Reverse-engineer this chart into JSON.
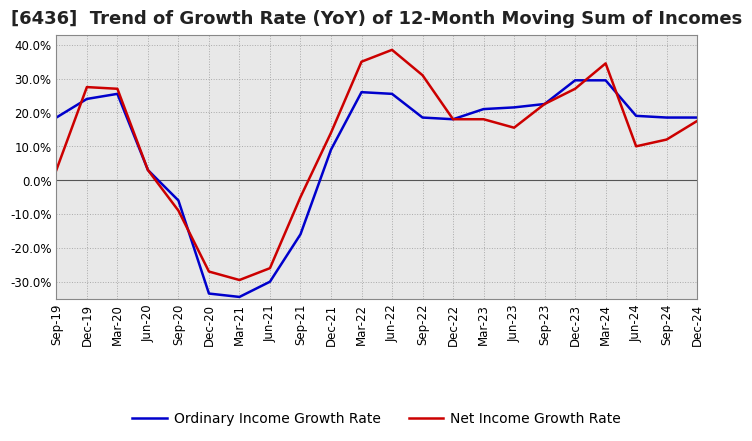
{
  "title": "[6436]  Trend of Growth Rate (YoY) of 12-Month Moving Sum of Incomes",
  "x_labels": [
    "Sep-19",
    "Dec-19",
    "Mar-20",
    "Jun-20",
    "Sep-20",
    "Dec-20",
    "Mar-21",
    "Jun-21",
    "Sep-21",
    "Dec-21",
    "Mar-22",
    "Jun-22",
    "Sep-22",
    "Dec-22",
    "Mar-23",
    "Jun-23",
    "Sep-23",
    "Dec-23",
    "Mar-24",
    "Jun-24",
    "Sep-24",
    "Dec-24"
  ],
  "ordinary_income": [
    18.5,
    24.0,
    25.5,
    3.0,
    -6.0,
    -33.5,
    -34.5,
    -30.0,
    -16.0,
    9.0,
    26.0,
    25.5,
    18.5,
    18.0,
    21.0,
    21.5,
    22.5,
    29.5,
    29.5,
    19.0,
    18.5,
    18.5
  ],
  "net_income": [
    3.0,
    27.5,
    27.0,
    3.0,
    -9.0,
    -27.0,
    -29.5,
    -26.0,
    -5.0,
    14.0,
    35.0,
    38.5,
    31.0,
    18.0,
    18.0,
    15.5,
    22.5,
    27.0,
    34.5,
    10.0,
    12.0,
    17.5
  ],
  "ordinary_color": "#0000cc",
  "net_color": "#cc0000",
  "ylim": [
    -35,
    43
  ],
  "yticks": [
    -30,
    -20,
    -10,
    0,
    10,
    20,
    30,
    40
  ],
  "grid_color": "#aaaaaa",
  "plot_bg_color": "#e8e8e8",
  "background_color": "#ffffff",
  "legend_ordinary": "Ordinary Income Growth Rate",
  "legend_net": "Net Income Growth Rate",
  "title_fontsize": 13,
  "tick_fontsize": 8.5,
  "legend_fontsize": 10
}
